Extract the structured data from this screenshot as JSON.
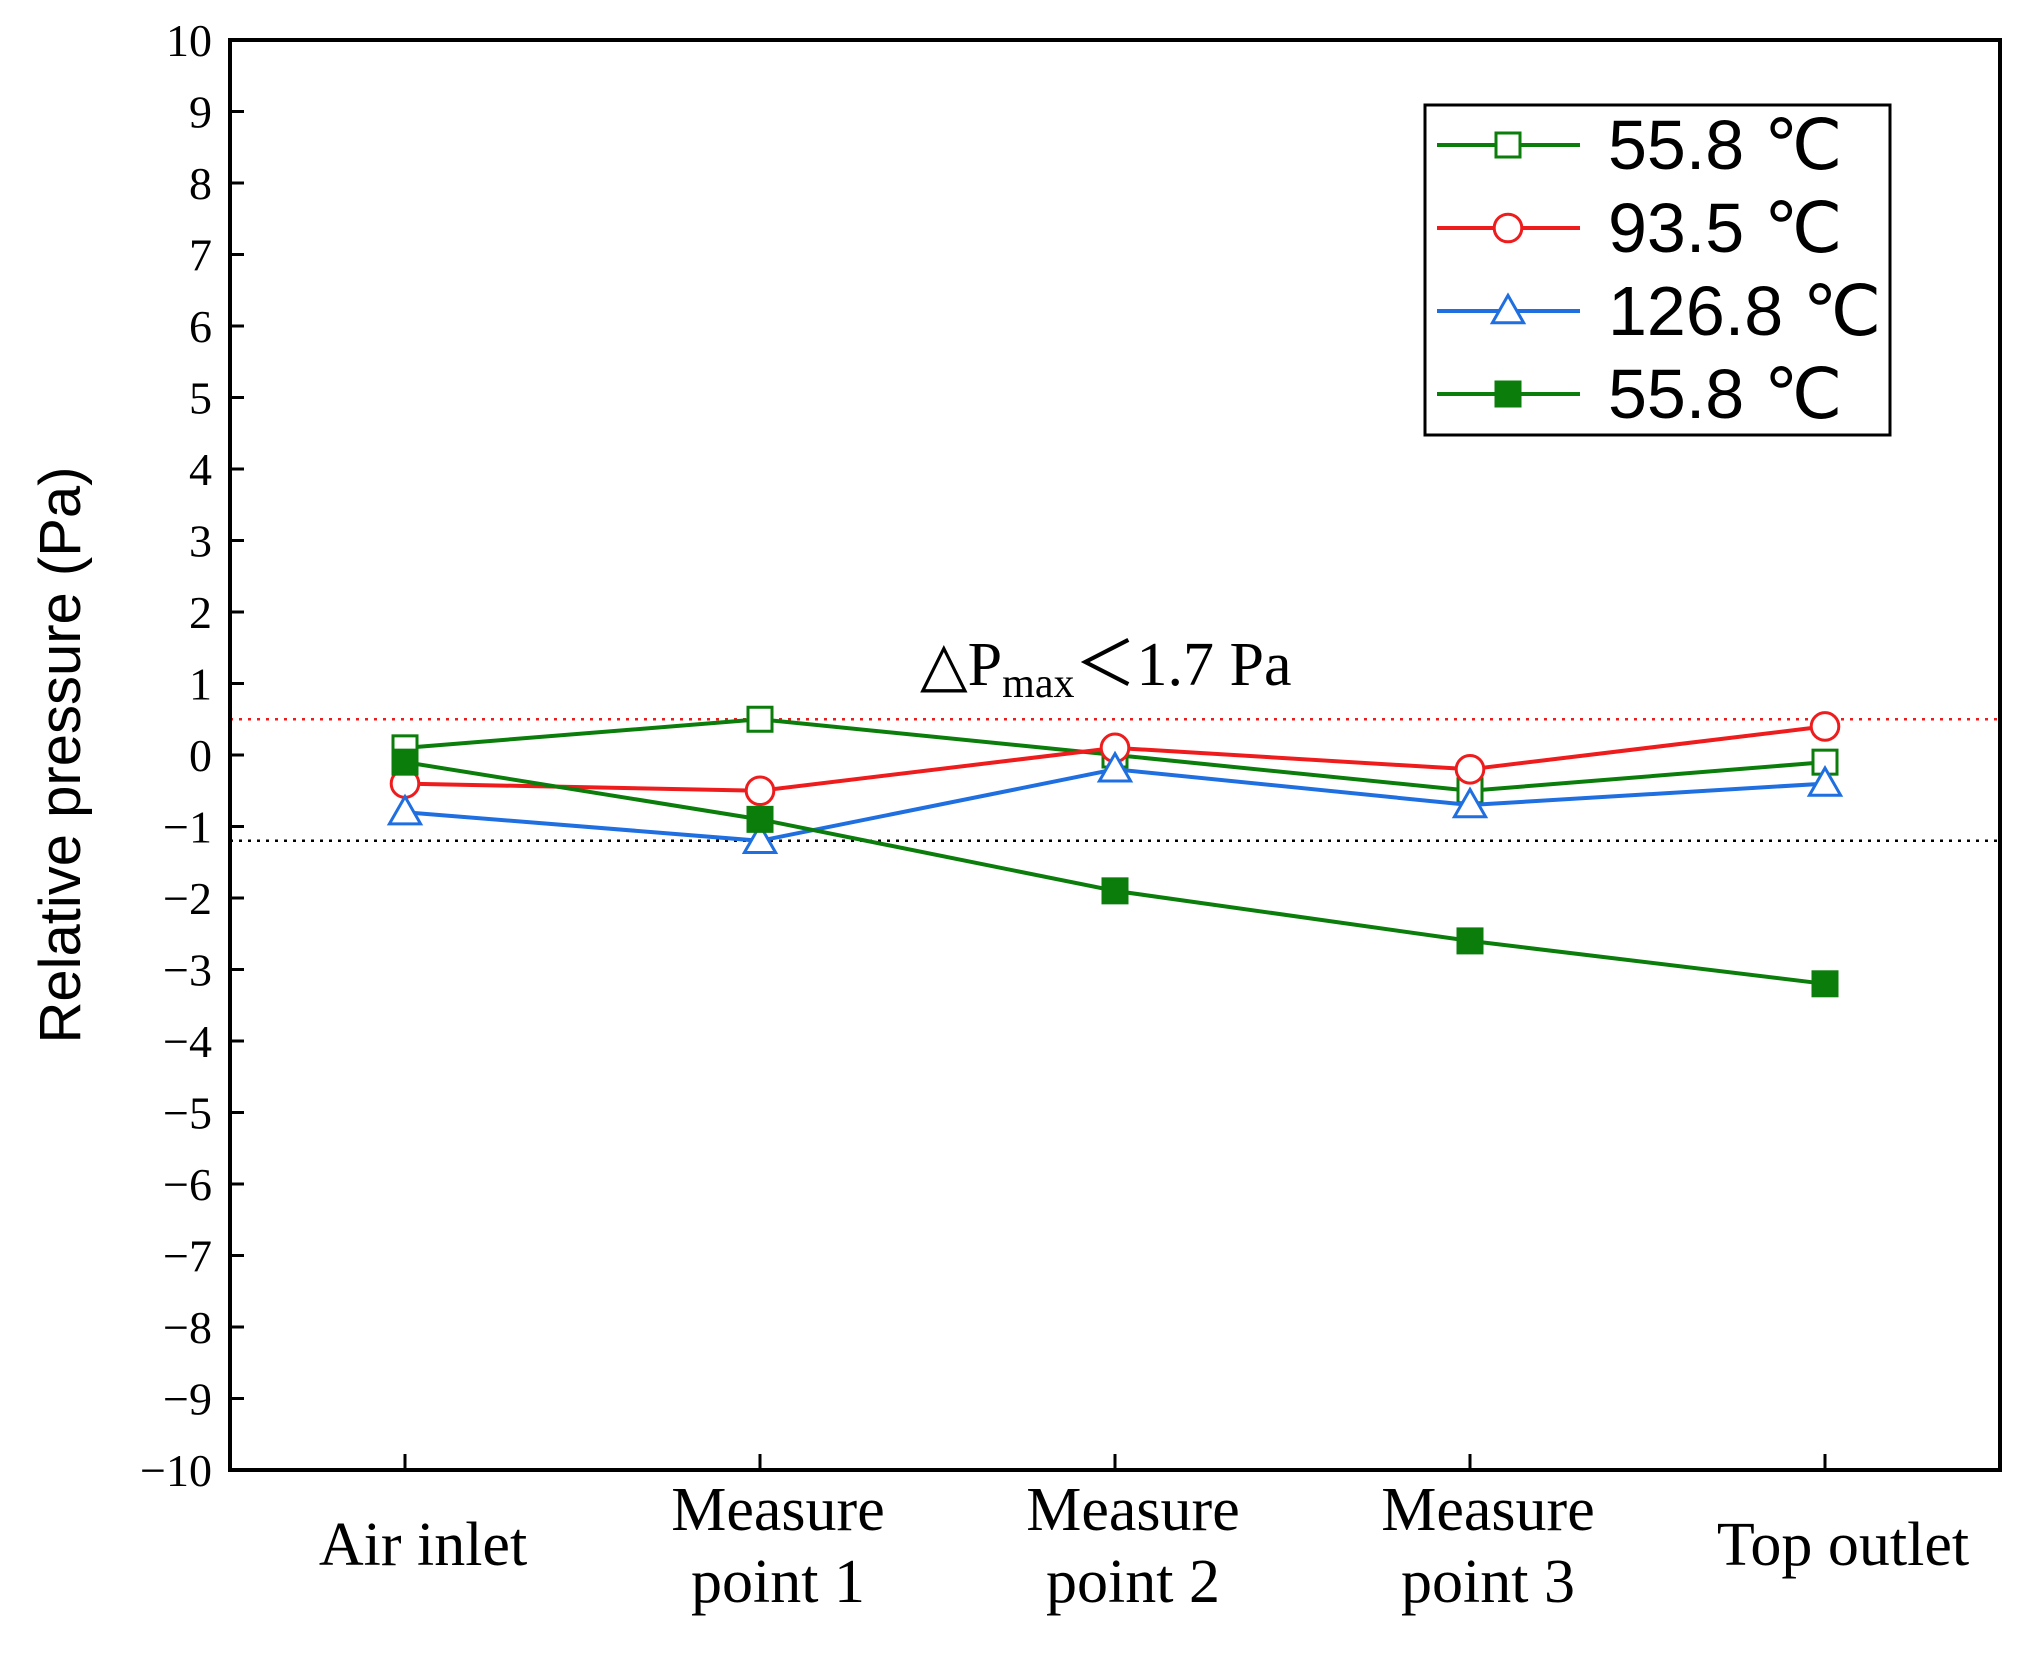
{
  "chart_data": {
    "type": "line",
    "title": "",
    "xlabel": "",
    "ylabel": "Relative pressure (Pa)",
    "ylim": [
      -10,
      10
    ],
    "ytick_step": 1,
    "grid": false,
    "legend_position": "top-right",
    "categories": [
      [
        "Air inlet"
      ],
      [
        "Measure",
        "point 1"
      ],
      [
        "Measure",
        "point 2"
      ],
      [
        "Measure",
        "point 3"
      ],
      [
        "Top outlet"
      ]
    ],
    "series": [
      {
        "name": "55.8 ℃",
        "color": "#0a7d0a",
        "marker": "square-open",
        "values": [
          0.1,
          0.5,
          0.0,
          -0.5,
          -0.1
        ]
      },
      {
        "name": "93.5 ℃",
        "color": "#ee1c1c",
        "marker": "circle-open",
        "values": [
          -0.4,
          -0.5,
          0.1,
          -0.2,
          0.4
        ]
      },
      {
        "name": "126.8 ℃",
        "color": "#1f6fe0",
        "marker": "triangle-open",
        "values": [
          -0.8,
          -1.2,
          -0.2,
          -0.7,
          -0.4
        ]
      },
      {
        "name": "55.8 ℃",
        "color": "#0a7d0a",
        "marker": "square-filled",
        "values": [
          -0.1,
          -0.9,
          -1.9,
          -2.6,
          -3.2
        ]
      }
    ],
    "reference_lines": [
      {
        "value": 0.5,
        "color": "#ee1c1c",
        "style": "dotted"
      },
      {
        "value": -1.2,
        "color": "#000000",
        "style": "dotted"
      }
    ],
    "annotation": {
      "prefix": "△P",
      "subscript": "max",
      "suffix": "＜1.7 Pa"
    }
  }
}
